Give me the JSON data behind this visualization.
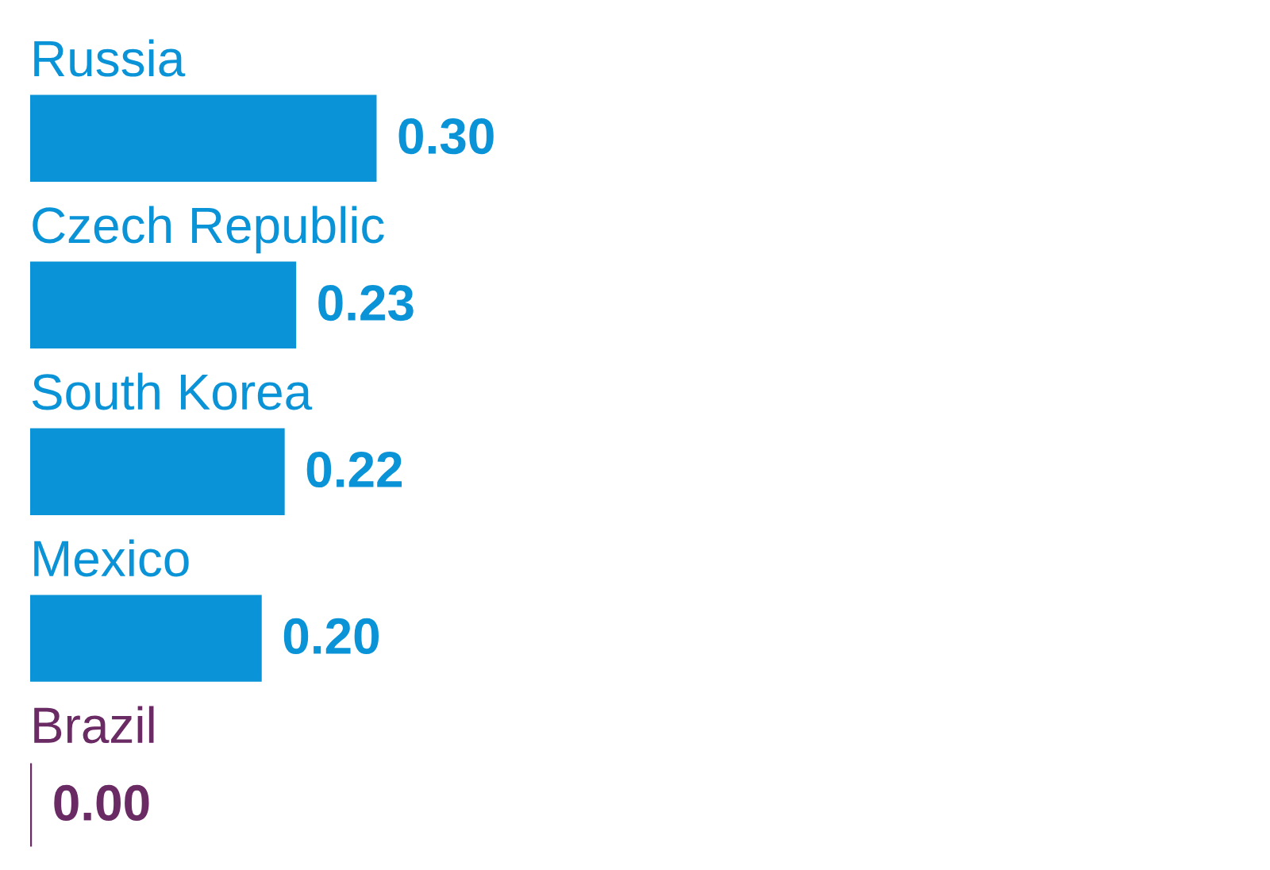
{
  "chart_data": {
    "type": "bar",
    "orientation": "horizontal",
    "categories": [
      "Russia",
      "Czech Republic",
      "South Korea",
      "Mexico",
      "Brazil"
    ],
    "values": [
      0.3,
      0.23,
      0.22,
      0.2,
      0.0
    ],
    "value_labels": [
      "0.30",
      "0.23",
      "0.22",
      "0.20",
      "0.00"
    ],
    "colors": [
      "#0a93d6",
      "#0a93d6",
      "#0a93d6",
      "#0a93d6",
      "#6a2a63"
    ]
  }
}
